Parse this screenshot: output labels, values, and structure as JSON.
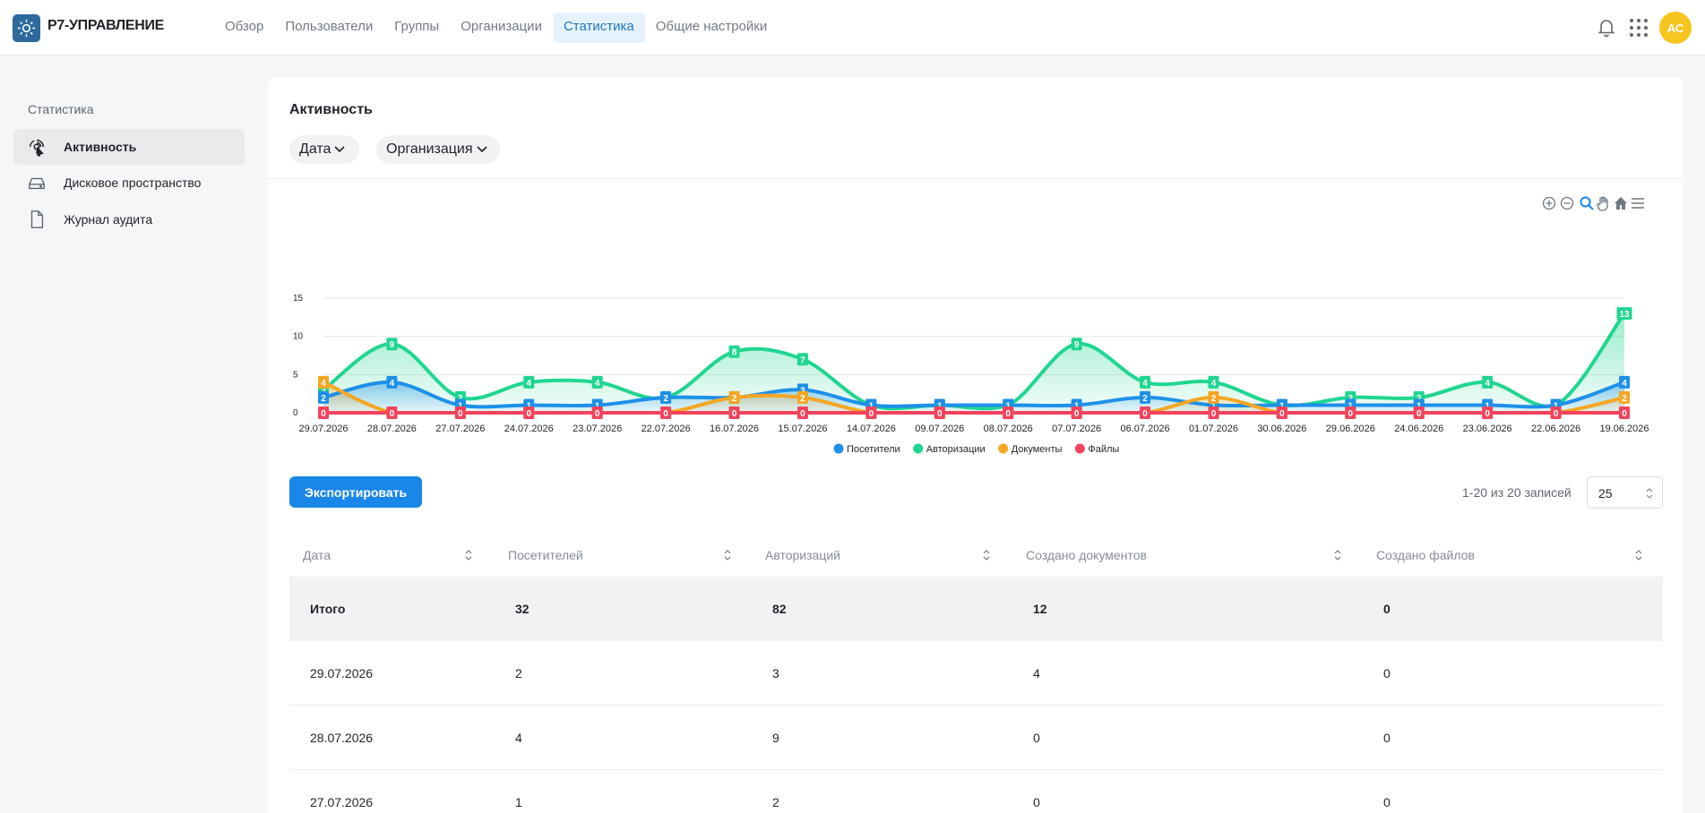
{
  "app": {
    "brand": "Р7-УПРАВЛЕНИЕ",
    "avatar_initials": "АС",
    "accent": "#1a86e8"
  },
  "nav": [
    {
      "label": "Обзор",
      "active": false
    },
    {
      "label": "Пользователи",
      "active": false
    },
    {
      "label": "Группы",
      "active": false
    },
    {
      "label": "Организации",
      "active": false
    },
    {
      "label": "Статистика",
      "active": true
    },
    {
      "label": "Общие настройки",
      "active": false
    }
  ],
  "sidebar": {
    "title": "Статистика",
    "items": [
      {
        "label": "Активность",
        "icon": "activity-icon",
        "active": true
      },
      {
        "label": "Дисковое пространство",
        "icon": "disk-icon",
        "active": false
      },
      {
        "label": "Журнал аудита",
        "icon": "document-icon",
        "active": false
      }
    ]
  },
  "main": {
    "title": "Активность",
    "filters": [
      {
        "label": "Дата"
      },
      {
        "label": "Организация"
      }
    ],
    "export_label": "Экспортировать",
    "records_text": "1-20 из 20 записей",
    "page_size": "25"
  },
  "chart_data": {
    "type": "area",
    "categories": [
      "29.07.2026",
      "28.07.2026",
      "27.07.2026",
      "24.07.2026",
      "23.07.2026",
      "22.07.2026",
      "16.07.2026",
      "15.07.2026",
      "14.07.2026",
      "09.07.2026",
      "08.07.2026",
      "07.07.2026",
      "06.07.2026",
      "01.07.2026",
      "30.06.2026",
      "29.06.2026",
      "24.06.2026",
      "23.06.2026",
      "22.06.2026",
      "19.06.2026"
    ],
    "ylim": [
      0,
      15
    ],
    "yticks": [
      0,
      5,
      10,
      15
    ],
    "grid": true,
    "legend_position": "bottom",
    "series": [
      {
        "name": "Посетители",
        "color": "#1e90e8",
        "values": [
          2,
          4,
          1,
          1,
          1,
          2,
          2,
          3,
          1,
          1,
          1,
          1,
          2,
          1,
          1,
          1,
          1,
          1,
          1,
          4
        ]
      },
      {
        "name": "Авторизации",
        "color": "#1fd690",
        "values": [
          3,
          9,
          2,
          4,
          4,
          2,
          8,
          7,
          1,
          1,
          1,
          9,
          4,
          4,
          1,
          2,
          2,
          4,
          1,
          13
        ]
      },
      {
        "name": "Документы",
        "color": "#f5a623",
        "values": [
          4,
          0,
          0,
          0,
          0,
          0,
          2,
          2,
          0,
          0,
          0,
          0,
          0,
          2,
          0,
          0,
          0,
          0,
          0,
          2
        ]
      },
      {
        "name": "Файлы",
        "color": "#f2435d",
        "values": [
          0,
          0,
          0,
          0,
          0,
          0,
          0,
          0,
          0,
          0,
          0,
          0,
          0,
          0,
          0,
          0,
          0,
          0,
          0,
          0
        ]
      }
    ]
  },
  "table": {
    "headers": [
      "Дата",
      "Посетителей",
      "Авторизаций",
      "Создано документов",
      "Создано файлов"
    ],
    "total": [
      "Итого",
      "32",
      "82",
      "12",
      "0"
    ],
    "rows": [
      [
        "29.07.2026",
        "2",
        "3",
        "4",
        "0"
      ],
      [
        "28.07.2026",
        "4",
        "9",
        "0",
        "0"
      ],
      [
        "27.07.2026",
        "1",
        "2",
        "0",
        "0"
      ]
    ]
  }
}
